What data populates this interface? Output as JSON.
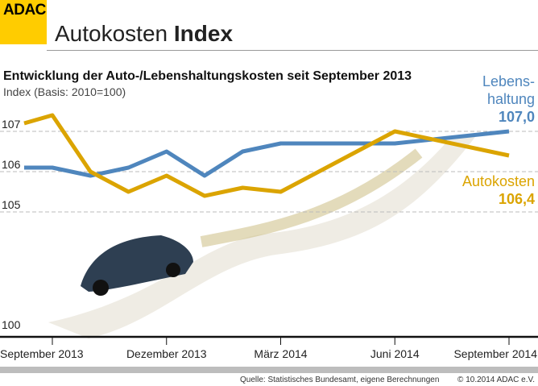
{
  "header": {
    "logo": "ADAC",
    "title_light": "Autokosten",
    "title_bold": "Index"
  },
  "subtitle": "Entwicklung der Auto-/Lebenshaltungskosten seit September 2013",
  "basis": "Index (Basis: 2010=100)",
  "legend": {
    "lebenshaltung_line1": "Lebens-",
    "lebenshaltung_line2": "haltung",
    "lebenshaltung_value": "107,0",
    "autokosten_label": "Autokosten",
    "autokosten_value": "106,4"
  },
  "footer": {
    "source": "Quelle: Statistisches Bundesamt, eigene Berechnungen",
    "copyright": "© 10.2014  ADAC e.V."
  },
  "chart_data": {
    "type": "line",
    "title": "Entwicklung der Auto-/Lebenshaltungskosten seit September 2013",
    "ylabel": "Index (Basis: 2010=100)",
    "y_axis_broken": true,
    "ylim": [
      100,
      107.5
    ],
    "yticks": [
      "100",
      "105",
      "106",
      "107"
    ],
    "xticks": [
      "September 2013",
      "Dezember 2013",
      "März 2014",
      "Juni 2014",
      "September 2014"
    ],
    "grid": "horizontal dashed at 105, 106, 107",
    "x": [
      "2013-08",
      "2013-09",
      "2013-10",
      "2013-11",
      "2013-12",
      "2014-01",
      "2014-02",
      "2014-03",
      "2014-06",
      "2014-09"
    ],
    "series": [
      {
        "name": "Lebenshaltung",
        "color": "#4f86bd",
        "values": [
          106.1,
          106.1,
          105.9,
          106.1,
          106.5,
          105.9,
          106.5,
          106.7,
          106.7,
          107.0
        ]
      },
      {
        "name": "Autokosten",
        "color": "#dba400",
        "values": [
          107.2,
          107.4,
          106.0,
          105.5,
          105.9,
          105.4,
          105.6,
          105.5,
          107.0,
          106.4
        ]
      }
    ]
  }
}
